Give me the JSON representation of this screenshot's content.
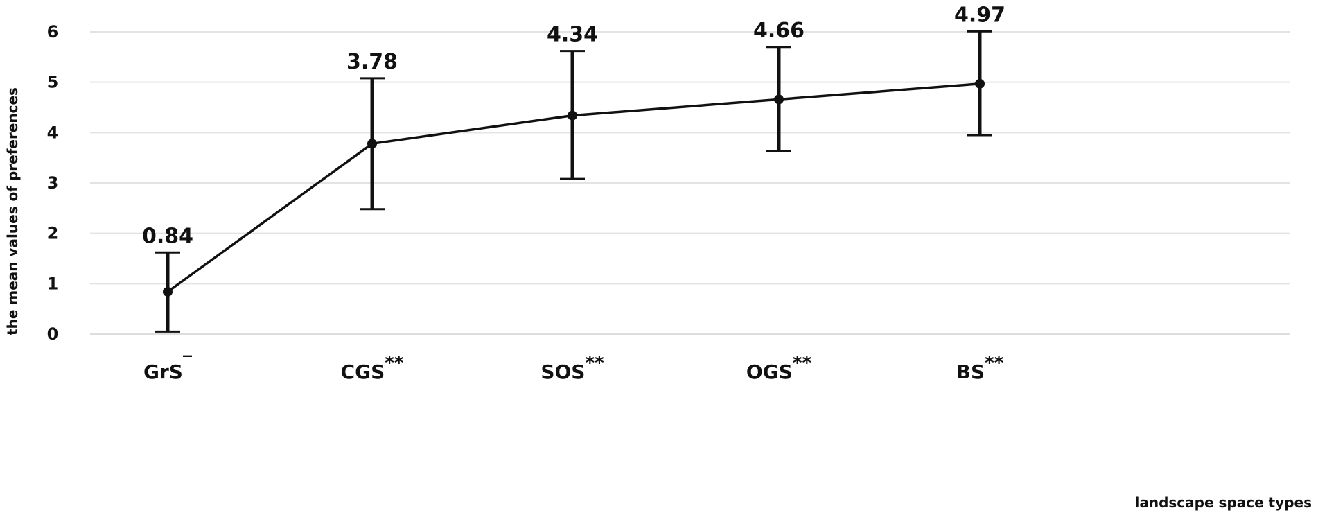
{
  "chart_data": {
    "type": "line",
    "title": "",
    "xlabel": "landscape space types",
    "ylabel": "the mean values of preferences",
    "ylim": [
      0,
      6
    ],
    "yticks": [
      "0",
      "1",
      "2",
      "3",
      "4",
      "5",
      "6"
    ],
    "grid": true,
    "categories": [
      {
        "name": "GrS",
        "sup": "‾"
      },
      {
        "name": "CGS",
        "sup": "**"
      },
      {
        "name": "SOS",
        "sup": "**"
      },
      {
        "name": "OGS",
        "sup": "**"
      },
      {
        "name": "BS",
        "sup": "**"
      }
    ],
    "series": [
      {
        "values": [
          0.84,
          3.78,
          4.34,
          4.66,
          4.97
        ],
        "value_labels": [
          "0.84",
          "3.78",
          "4.34",
          "4.66",
          "4.97"
        ],
        "error_low": [
          0.05,
          2.48,
          3.08,
          3.63,
          3.95
        ],
        "error_high": [
          1.62,
          5.08,
          5.62,
          5.7,
          6.01
        ]
      }
    ],
    "colors": {
      "line": "#111111",
      "grid": "#e3e3e3",
      "axis": "#dddddd"
    }
  }
}
